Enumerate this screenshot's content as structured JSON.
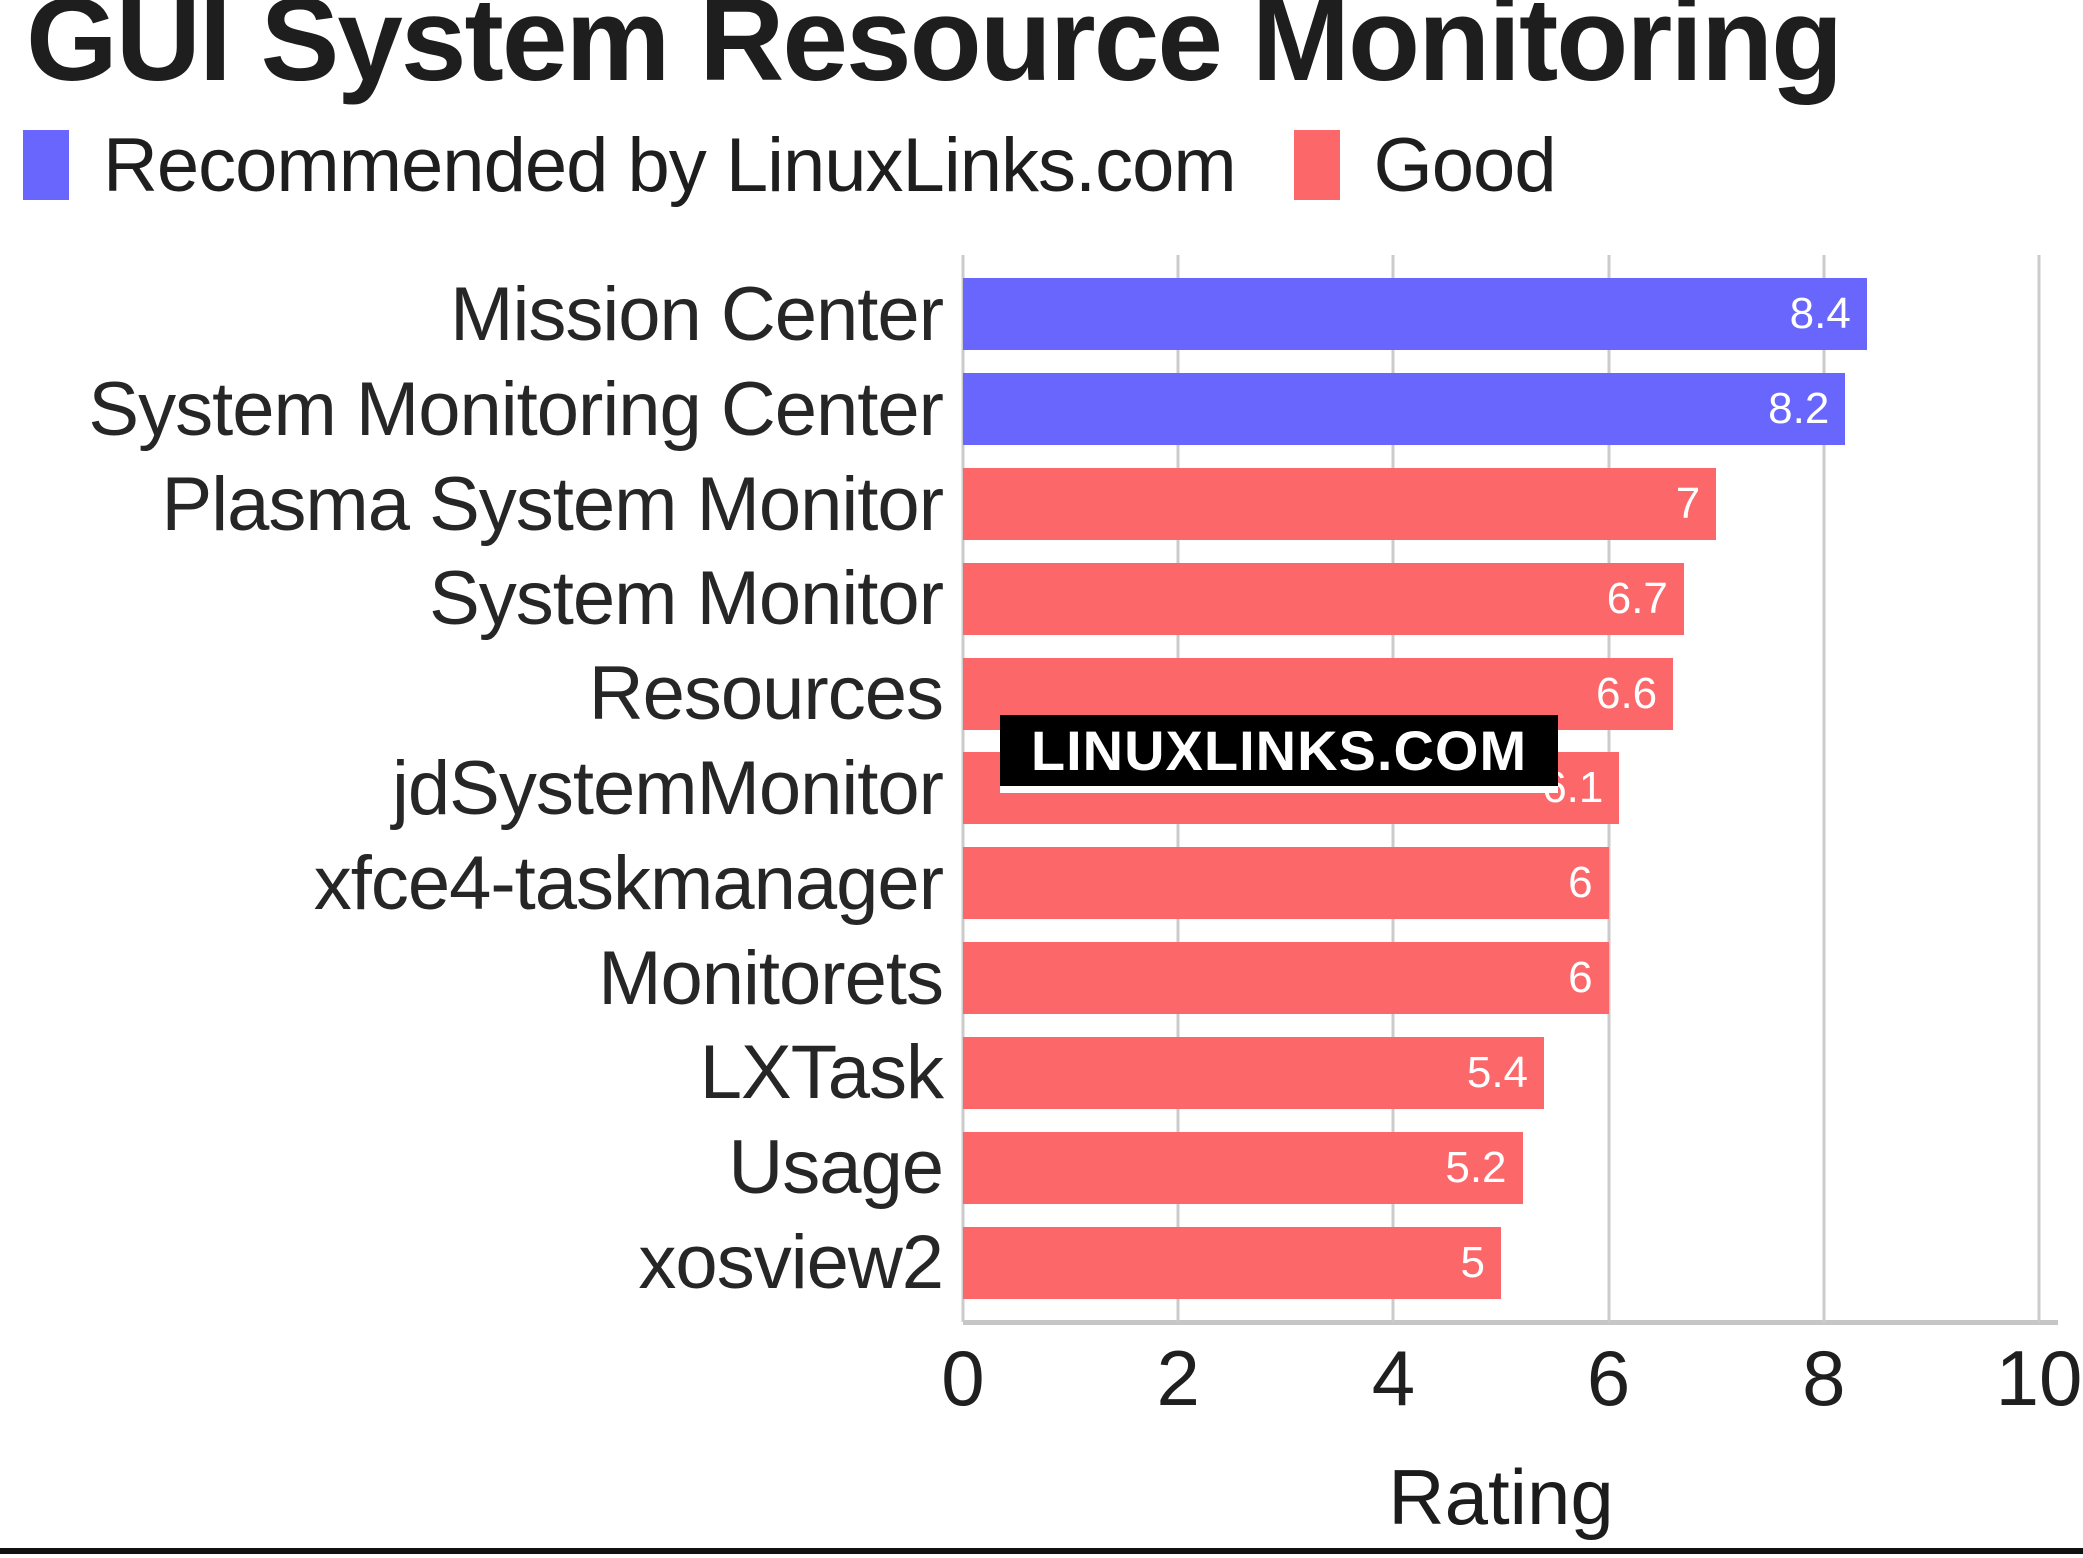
{
  "title": "GUI System Resource Monitoring",
  "watermark": "LINUXLINKS.COM",
  "legend": [
    {
      "label": "Recommended by LinuxLinks.com",
      "series": "recommended"
    },
    {
      "label": "Good",
      "series": "good"
    }
  ],
  "colors": {
    "recommended": "#6866fc",
    "good": "#fc676a",
    "gridline": "#cbcbcb",
    "axis": "#c6c6c6",
    "value_label": "#ffffff",
    "watermark_bg": "#000000",
    "watermark_text": "#ffffff",
    "watermark_underline": "#ffffff",
    "bottom_rule": "#111111"
  },
  "chart_data": {
    "type": "bar",
    "orientation": "horizontal",
    "title": "GUI System Resource Monitoring",
    "xlabel": "Rating",
    "ylabel": "",
    "xlim": [
      0,
      10
    ],
    "x_ticks": [
      0,
      2,
      4,
      6,
      8,
      10
    ],
    "grid": true,
    "legend_position": "top",
    "bars": [
      {
        "category": "Mission Center",
        "value": 8.4,
        "series": "recommended"
      },
      {
        "category": "System Monitoring Center",
        "value": 8.2,
        "series": "recommended"
      },
      {
        "category": "Plasma System Monitor",
        "value": 7,
        "series": "good"
      },
      {
        "category": "System Monitor",
        "value": 6.7,
        "series": "good"
      },
      {
        "category": "Resources",
        "value": 6.6,
        "series": "good"
      },
      {
        "category": "jdSystemMonitor",
        "value": 6.1,
        "series": "good"
      },
      {
        "category": "xfce4-taskmanager",
        "value": 6,
        "series": "good"
      },
      {
        "category": "Monitorets",
        "value": 6,
        "series": "good"
      },
      {
        "category": "LXTask",
        "value": 5.4,
        "series": "good"
      },
      {
        "category": "Usage",
        "value": 5.2,
        "series": "good"
      },
      {
        "category": "xosview2",
        "value": 5,
        "series": "good"
      }
    ]
  }
}
